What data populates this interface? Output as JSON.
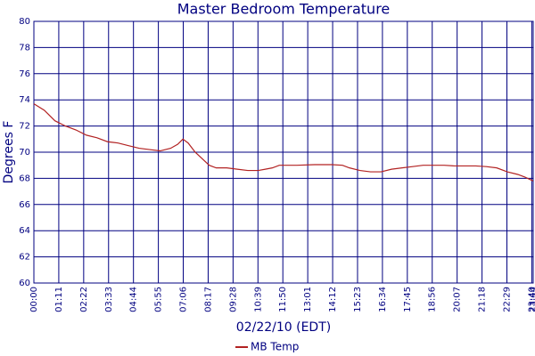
{
  "chart_data": {
    "type": "line",
    "title": "Master Bedroom Temperature",
    "x_label": "02/22/10 (EDT)",
    "y_label": "Degrees F",
    "x": [
      0,
      30,
      60,
      90,
      120,
      150,
      180,
      210,
      240,
      270,
      300,
      330,
      360,
      390,
      410,
      425,
      440,
      460,
      480,
      500,
      520,
      550,
      580,
      610,
      640,
      660,
      680,
      700,
      750,
      800,
      850,
      880,
      900,
      930,
      960,
      990,
      1020,
      1050,
      1080,
      1110,
      1140,
      1170,
      1200,
      1230,
      1260,
      1290,
      1320,
      1350,
      1380,
      1400,
      1424
    ],
    "series": [
      {
        "name": "MB Temp",
        "color": "#b22222",
        "values": [
          73.7,
          73.2,
          72.4,
          72.0,
          71.7,
          71.3,
          71.1,
          70.8,
          70.7,
          70.5,
          70.3,
          70.2,
          70.1,
          70.3,
          70.6,
          71.0,
          70.7,
          70.0,
          69.5,
          69.0,
          68.8,
          68.8,
          68.7,
          68.6,
          68.6,
          68.7,
          68.8,
          69.0,
          69.0,
          69.05,
          69.05,
          69.0,
          68.8,
          68.6,
          68.5,
          68.5,
          68.7,
          68.8,
          68.9,
          69.0,
          69.0,
          69.0,
          68.95,
          68.95,
          68.95,
          68.9,
          68.8,
          68.5,
          68.3,
          68.1,
          67.8
        ]
      }
    ],
    "xlim": [
      0,
      1424
    ],
    "xticks": [
      {
        "value": 0,
        "label": "00:00"
      },
      {
        "value": 71,
        "label": "01:11"
      },
      {
        "value": 142,
        "label": "02:22"
      },
      {
        "value": 213,
        "label": "03:33"
      },
      {
        "value": 284,
        "label": "04:44"
      },
      {
        "value": 355,
        "label": "05:55"
      },
      {
        "value": 426,
        "label": "07:06"
      },
      {
        "value": 497,
        "label": "08:17"
      },
      {
        "value": 568,
        "label": "09:28"
      },
      {
        "value": 639,
        "label": "10:39"
      },
      {
        "value": 710,
        "label": "11:50"
      },
      {
        "value": 781,
        "label": "13:01"
      },
      {
        "value": 852,
        "label": "14:12"
      },
      {
        "value": 923,
        "label": "15:23"
      },
      {
        "value": 994,
        "label": "16:34"
      },
      {
        "value": 1065,
        "label": "17:45"
      },
      {
        "value": 1136,
        "label": "18:56"
      },
      {
        "value": 1207,
        "label": "20:07"
      },
      {
        "value": 1278,
        "label": "21:18"
      },
      {
        "value": 1349,
        "label": "22:29"
      },
      {
        "value": 1420,
        "label": "23:40"
      },
      {
        "value": 1424,
        "label": "23:44"
      }
    ],
    "ylim": [
      60,
      80
    ],
    "yticks": [
      60,
      62,
      64,
      66,
      68,
      70,
      72,
      74,
      76,
      78,
      80
    ],
    "grid": true
  }
}
